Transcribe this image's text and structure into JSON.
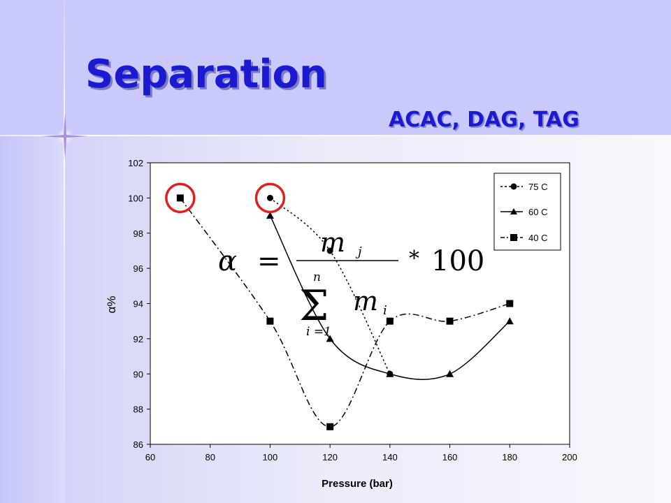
{
  "slide": {
    "title": "Separation",
    "subtitle": "ACAC, DAG, TAG"
  },
  "colors": {
    "title": "#1a1ad0",
    "banner": "#c9c9fb",
    "highlight_circle": "#e02020"
  },
  "chart_data": {
    "type": "line",
    "xlabel": "Pressure (bar)",
    "ylabel": "α%",
    "xlim": [
      60,
      200
    ],
    "ylim": [
      86,
      102
    ],
    "x_ticks": [
      60,
      80,
      100,
      120,
      140,
      160,
      180,
      200
    ],
    "y_ticks": [
      86,
      88,
      90,
      92,
      94,
      96,
      98,
      100,
      102
    ],
    "grid": false,
    "legend_position": "top-right",
    "series": [
      {
        "name": "75 C",
        "marker": "circle",
        "line_style": "dotted",
        "points": [
          [
            100,
            100
          ],
          [
            120,
            97
          ],
          [
            140,
            90
          ]
        ]
      },
      {
        "name": "60 C",
        "marker": "triangle",
        "line_style": "solid",
        "points": [
          [
            100,
            99
          ],
          [
            120,
            92
          ],
          [
            140,
            90
          ],
          [
            160,
            90
          ],
          [
            180,
            93
          ]
        ]
      },
      {
        "name": "40 C",
        "marker": "square",
        "line_style": "dash-dot",
        "points": [
          [
            70,
            100
          ],
          [
            100,
            93
          ],
          [
            120,
            87
          ],
          [
            140,
            93
          ],
          [
            160,
            93
          ],
          [
            180,
            94
          ]
        ]
      }
    ],
    "highlighted_points": [
      [
        70,
        100
      ],
      [
        100,
        100
      ]
    ],
    "annotation_formula": {
      "lhs": "α",
      "equals": "=",
      "numerator_var": "m",
      "numerator_sub": "j",
      "sum_symbol": "Σ",
      "sum_upper": "n",
      "sum_lower": "i =1",
      "denominator_var": "m",
      "denominator_sub": "i",
      "times": "*",
      "constant": "100"
    }
  }
}
